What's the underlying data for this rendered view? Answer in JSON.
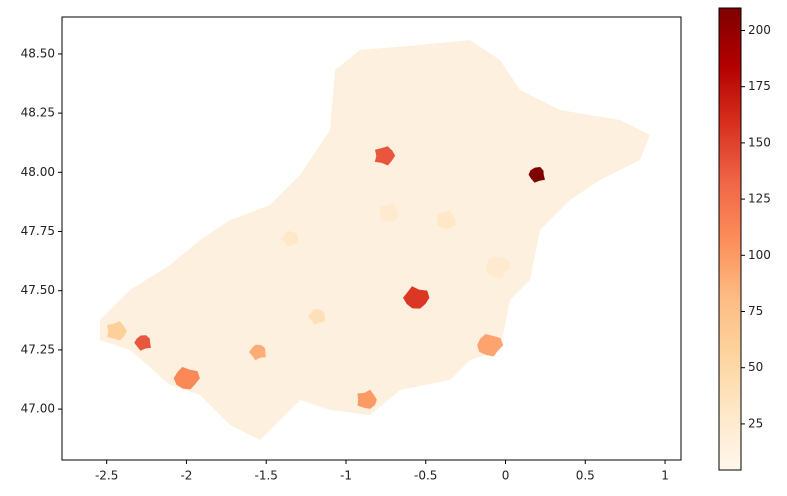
{
  "chart_data": {
    "type": "choropleth",
    "xlim": [
      -2.78,
      1.1
    ],
    "xticks": [
      -2.5,
      -2.0,
      -1.5,
      -1.0,
      -0.5,
      0.0,
      0.5,
      1.0
    ],
    "ylim": [
      46.785,
      48.656
    ],
    "yticks": [
      {
        "value": 47.0,
        "label": "47.00"
      },
      {
        "value": 47.25,
        "label": "47.25"
      },
      {
        "value": 47.5,
        "label": "47.50"
      },
      {
        "value": 47.75,
        "label": "47.75"
      },
      {
        "value": 48.0,
        "label": "48.00"
      },
      {
        "value": 48.25,
        "label": "48.25"
      },
      {
        "value": 48.5,
        "label": "48.50"
      }
    ],
    "colorbar_lim": [
      4.5,
      210
    ],
    "colorbar_ticks": [
      25,
      50,
      75,
      100,
      125,
      150,
      175,
      200
    ],
    "colormap": [
      "#fff7ec",
      "#fee8c8",
      "#fdd49e",
      "#fdbb84",
      "#fc8d59",
      "#ef6548",
      "#d7301f",
      "#b30000",
      "#7f0000"
    ],
    "regions": [
      {
        "lon": 0.2,
        "lat": 47.99,
        "value": 210
      },
      {
        "lon": -0.76,
        "lat": 48.07,
        "value": 140
      },
      {
        "lon": -0.56,
        "lat": 47.47,
        "value": 155
      },
      {
        "lon": -2.27,
        "lat": 47.28,
        "value": 140
      },
      {
        "lon": -2.44,
        "lat": 47.33,
        "value": 60
      },
      {
        "lon": -2.0,
        "lat": 47.13,
        "value": 110
      },
      {
        "lon": -1.55,
        "lat": 47.24,
        "value": 90
      },
      {
        "lon": -0.87,
        "lat": 47.04,
        "value": 100
      },
      {
        "lon": -0.1,
        "lat": 47.27,
        "value": 95
      },
      {
        "lon": -1.18,
        "lat": 47.39,
        "value": 40
      },
      {
        "lon": -0.73,
        "lat": 47.83,
        "value": 25
      },
      {
        "lon": -0.05,
        "lat": 47.6,
        "value": 25
      },
      {
        "lon": -1.35,
        "lat": 47.72,
        "value": 30
      },
      {
        "lon": -0.37,
        "lat": 47.8,
        "value": 30
      }
    ]
  }
}
